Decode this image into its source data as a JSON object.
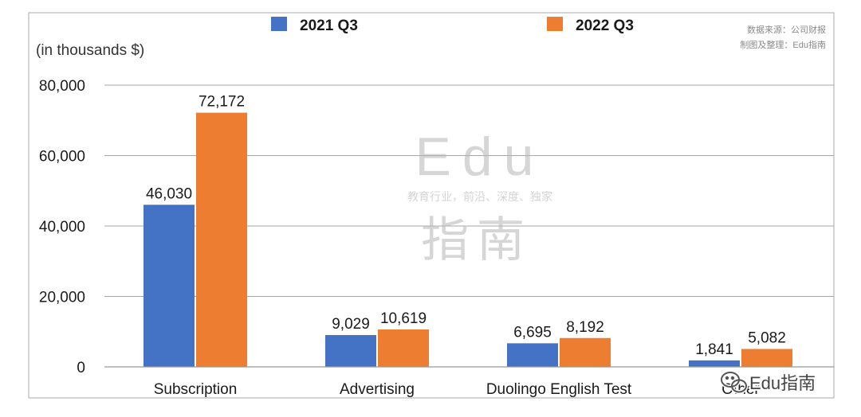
{
  "chart_data": {
    "type": "bar",
    "unit_label": "(in thousands $)",
    "categories": [
      "Subscription",
      "Advertising",
      "Duolingo English Test",
      "Other"
    ],
    "series": [
      {
        "name": "2021 Q3",
        "color": "#4472c4",
        "values": [
          46030,
          9029,
          6695,
          1841
        ],
        "labels": [
          "46,030",
          "9,029",
          "6,695",
          "1,841"
        ]
      },
      {
        "name": "2022 Q3",
        "color": "#ed7d31",
        "values": [
          72172,
          10619,
          8192,
          5082
        ],
        "labels": [
          "72,172",
          "10,619",
          "8,192",
          "5,082"
        ]
      }
    ],
    "ylim": [
      0,
      80000
    ],
    "yticks": [
      0,
      20000,
      40000,
      60000,
      80000
    ],
    "ytick_labels": [
      "0",
      "20,000",
      "40,000",
      "60,000",
      "80,000"
    ],
    "grid": true,
    "legend_position": "top"
  },
  "source": {
    "line1": "数据来源：公司财报",
    "line2": "制图及整理：Edu指南"
  },
  "watermark": {
    "logo": "Edu",
    "tagline": "教育行业，前沿、深度、独家",
    "chars": "指南",
    "bottom_label": "Edu指南",
    "icon": "wechat-icon"
  }
}
